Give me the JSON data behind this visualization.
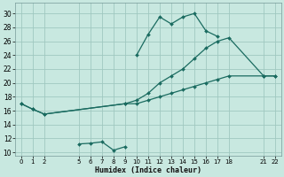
{
  "xlabel": "Humidex (Indice chaleur)",
  "background_color": "#c8e8e0",
  "grid_color": "#a0c8c0",
  "line_color": "#1a6b60",
  "xlim": [
    -0.5,
    22.5
  ],
  "ylim": [
    9.5,
    31.5
  ],
  "xticks": [
    0,
    1,
    2,
    5,
    6,
    7,
    8,
    9,
    10,
    11,
    12,
    13,
    14,
    15,
    16,
    17,
    18,
    21,
    22
  ],
  "yticks": [
    10,
    12,
    14,
    16,
    18,
    20,
    22,
    24,
    26,
    28,
    30
  ],
  "line_top_x": [
    10,
    11,
    12,
    13,
    14,
    15,
    16,
    17
  ],
  "line_top_y": [
    24,
    27,
    29.5,
    28.5,
    29.5,
    30,
    27.5,
    26.7
  ],
  "line_mid_upper_x": [
    0,
    1,
    2,
    9,
    10,
    11,
    12,
    13,
    14,
    15,
    16,
    17,
    18,
    21,
    22
  ],
  "line_mid_upper_y": [
    17,
    16.2,
    15.5,
    17,
    17.5,
    18.5,
    20,
    21,
    22,
    23.5,
    25,
    26,
    26.5,
    21,
    21
  ],
  "line_mid_lower_x": [
    0,
    1,
    2,
    9,
    10,
    11,
    12,
    13,
    14,
    15,
    16,
    17,
    18,
    21,
    22
  ],
  "line_mid_lower_y": [
    17,
    16.2,
    15.5,
    17,
    17,
    17.5,
    18,
    18.5,
    19,
    19.5,
    20,
    20.5,
    21,
    21,
    21
  ],
  "line_low_x": [
    5,
    6,
    7,
    8,
    9
  ],
  "line_low_y": [
    11.2,
    11.3,
    11.5,
    10.3,
    10.8
  ]
}
